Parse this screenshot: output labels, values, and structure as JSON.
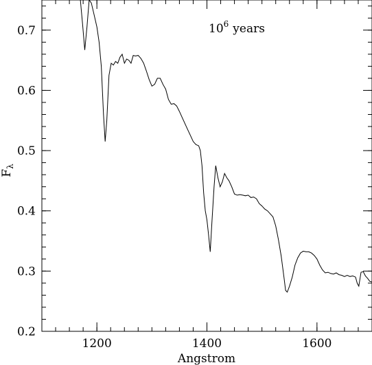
{
  "chart_data": {
    "type": "line",
    "title": "",
    "annotation": {
      "base": "10",
      "exponent": "6",
      "text": "years"
    },
    "xlabel": "Angstrom",
    "ylabel": {
      "base": "F",
      "subscript": "λ"
    },
    "xlim": [
      1100,
      1700
    ],
    "ylim": [
      0.2,
      0.75
    ],
    "x_ticks": [
      1200,
      1400,
      1600
    ],
    "x_tick_labels": [
      "1200",
      "1400",
      "1600"
    ],
    "y_ticks": [
      0.2,
      0.3,
      0.4,
      0.5,
      0.6,
      0.7
    ],
    "y_tick_labels": [
      "0.2",
      "0.3",
      "0.4",
      "0.5",
      "0.6",
      "0.7"
    ],
    "x_minor_step": 25,
    "y_minor_step": 0.02,
    "grid": false,
    "line_color": "#000000",
    "series": [
      {
        "x": [
          1170,
          1174,
          1178,
          1182,
          1186,
          1190,
          1195,
          1200,
          1204,
          1208,
          1212,
          1215,
          1218,
          1222,
          1226,
          1230,
          1234,
          1238,
          1242,
          1246,
          1250,
          1254,
          1258,
          1262,
          1266,
          1270,
          1275,
          1280,
          1285,
          1290,
          1295,
          1300,
          1305,
          1310,
          1315,
          1320,
          1325,
          1330,
          1335,
          1340,
          1345,
          1350,
          1355,
          1360,
          1365,
          1370,
          1375,
          1380,
          1385,
          1388,
          1391,
          1394,
          1397,
          1400,
          1403,
          1406,
          1409,
          1413,
          1416,
          1420,
          1424,
          1428,
          1432,
          1436,
          1440,
          1445,
          1450,
          1455,
          1460,
          1465,
          1470,
          1475,
          1480,
          1485,
          1490,
          1495,
          1500,
          1505,
          1510,
          1515,
          1520,
          1525,
          1530,
          1535,
          1540,
          1543,
          1546,
          1550,
          1555,
          1560,
          1565,
          1570,
          1575,
          1580,
          1585,
          1590,
          1595,
          1600,
          1605,
          1610,
          1615,
          1620,
          1625,
          1630,
          1635,
          1640,
          1645,
          1650,
          1655,
          1660,
          1665,
          1670,
          1673,
          1676,
          1680,
          1684,
          1688,
          1692,
          1696,
          1700
        ],
        "y": [
          0.75,
          0.71,
          0.667,
          0.705,
          0.75,
          0.745,
          0.725,
          0.705,
          0.68,
          0.64,
          0.56,
          0.515,
          0.55,
          0.625,
          0.645,
          0.642,
          0.648,
          0.645,
          0.655,
          0.66,
          0.645,
          0.652,
          0.65,
          0.645,
          0.658,
          0.657,
          0.658,
          0.653,
          0.645,
          0.632,
          0.618,
          0.607,
          0.61,
          0.62,
          0.62,
          0.61,
          0.602,
          0.585,
          0.577,
          0.578,
          0.574,
          0.565,
          0.555,
          0.545,
          0.535,
          0.525,
          0.515,
          0.51,
          0.508,
          0.5,
          0.475,
          0.43,
          0.4,
          0.385,
          0.36,
          0.332,
          0.38,
          0.44,
          0.475,
          0.455,
          0.44,
          0.448,
          0.462,
          0.455,
          0.45,
          0.44,
          0.428,
          0.426,
          0.427,
          0.426,
          0.425,
          0.426,
          0.422,
          0.423,
          0.42,
          0.412,
          0.408,
          0.403,
          0.4,
          0.395,
          0.39,
          0.375,
          0.352,
          0.325,
          0.29,
          0.268,
          0.265,
          0.275,
          0.29,
          0.31,
          0.322,
          0.33,
          0.333,
          0.332,
          0.332,
          0.33,
          0.326,
          0.32,
          0.31,
          0.302,
          0.297,
          0.298,
          0.296,
          0.295,
          0.297,
          0.294,
          0.293,
          0.291,
          0.293,
          0.291,
          0.292,
          0.29,
          0.28,
          0.275,
          0.298,
          0.299,
          0.292,
          0.288,
          0.283,
          0.282
        ]
      }
    ]
  }
}
